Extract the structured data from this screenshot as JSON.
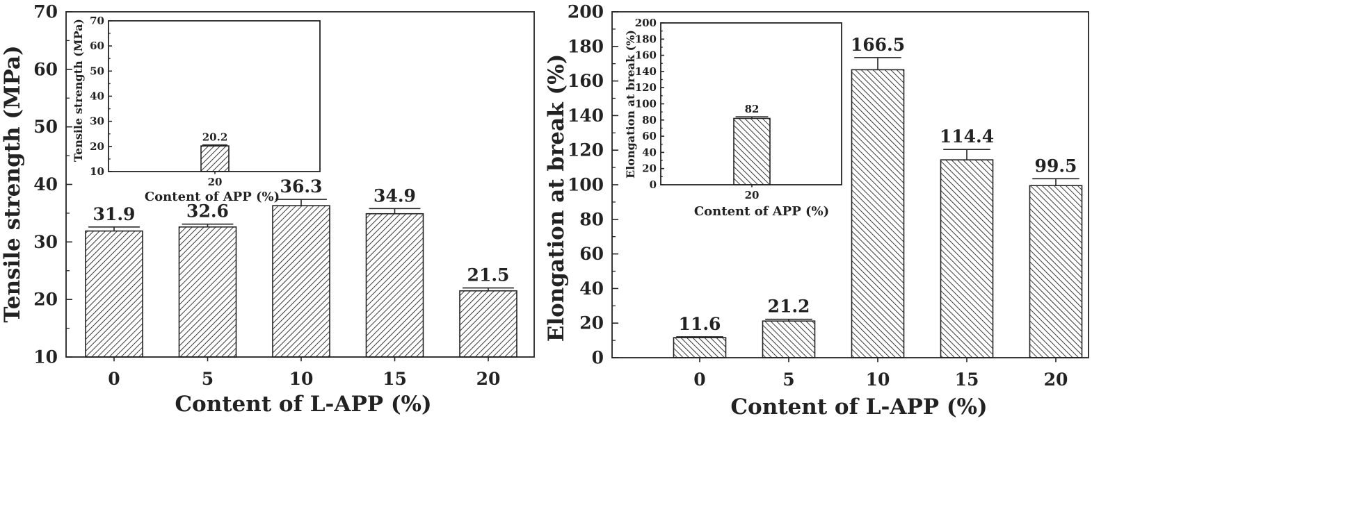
{
  "chart_data": [
    {
      "id": "tensile-main",
      "type": "bar",
      "title": "",
      "xlabel": "Content of L-APP (%)",
      "ylabel": "Tensile strength (MPa)",
      "categories": [
        "0",
        "5",
        "10",
        "15",
        "20"
      ],
      "values": [
        31.9,
        32.6,
        36.3,
        34.9,
        21.5
      ],
      "value_labels": [
        "31.9",
        "32.6",
        "36.3",
        "34.9",
        "21.5"
      ],
      "errors": [
        0.7,
        0.5,
        1.1,
        0.9,
        0.5
      ],
      "ylim": [
        10,
        70
      ],
      "yticks": [
        10,
        20,
        30,
        40,
        50,
        60,
        70
      ],
      "hatch": "forward-diagonal",
      "grid": false
    },
    {
      "id": "tensile-inset",
      "type": "bar",
      "title": "",
      "xlabel": "Content of APP (%)",
      "ylabel": "Tensile strength (MPa)",
      "categories": [
        "20"
      ],
      "values": [
        20.2
      ],
      "value_labels": [
        "20.2"
      ],
      "errors": [
        0.4
      ],
      "ylim": [
        10,
        70
      ],
      "yticks": [
        10,
        20,
        30,
        40,
        50,
        60,
        70
      ],
      "hatch": "forward-diagonal",
      "grid": false
    },
    {
      "id": "elong-main",
      "type": "bar",
      "title": "",
      "xlabel": "Content of L-APP (%)",
      "ylabel": "Elongation at break (%)",
      "categories": [
        "0",
        "5",
        "10",
        "15",
        "20"
      ],
      "values": [
        11.6,
        21.2,
        166.5,
        114.4,
        99.5
      ],
      "value_labels": [
        "11.6",
        "21.2",
        "166.5",
        "114.4",
        "99.5"
      ],
      "errors": [
        0.5,
        1.0,
        7.0,
        6.0,
        4.0
      ],
      "ylim": [
        0,
        200
      ],
      "yticks": [
        0,
        20,
        40,
        60,
        80,
        100,
        120,
        140,
        160,
        180,
        200
      ],
      "hatch": "back-diagonal",
      "grid": false
    },
    {
      "id": "elong-inset",
      "type": "bar",
      "title": "",
      "xlabel": "Content of APP (%)",
      "ylabel": "Elongation at break (%)",
      "categories": [
        "20"
      ],
      "values": [
        82
      ],
      "value_labels": [
        "82"
      ],
      "errors": [
        2
      ],
      "ylim": [
        0,
        200
      ],
      "yticks": [
        0,
        20,
        40,
        60,
        80,
        100,
        120,
        140,
        160,
        180,
        200
      ],
      "hatch": "back-diagonal",
      "grid": false
    }
  ]
}
